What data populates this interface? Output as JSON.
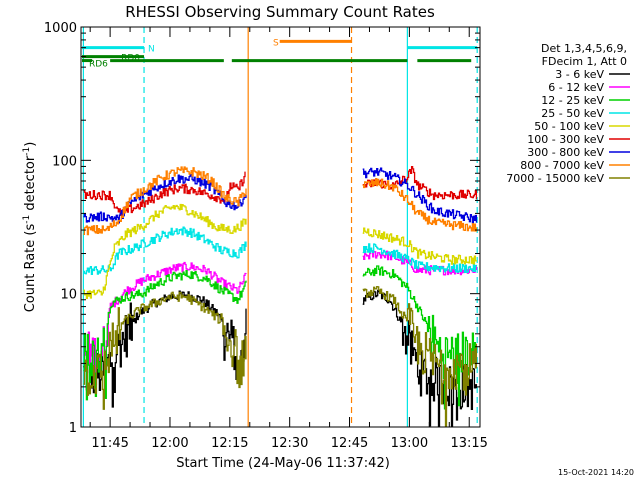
{
  "chart_data": {
    "type": "line",
    "title": "RHESSI Observing Summary Count Rates",
    "xlabel": "Start Time (24-May-06 11:37:42)",
    "ylabel_main": "Count Rate (s",
    "ylabel_sup1": "-1",
    "ylabel_mid": " detector",
    "ylabel_sup2": "-1",
    "ylabel_end": ")",
    "yscale": "log",
    "ylim": [
      1,
      1000
    ],
    "y_ticks": [
      {
        "value": 1,
        "label": "1"
      },
      {
        "value": 10,
        "label": "10"
      },
      {
        "value": 100,
        "label": "100"
      },
      {
        "value": 1000,
        "label": "1000"
      }
    ],
    "xlim_minutes": [
      697.7,
      797.7
    ],
    "x_ticks": [
      {
        "value": 705,
        "label": "11:45"
      },
      {
        "value": 720,
        "label": "12:00"
      },
      {
        "value": 735,
        "label": "12:15"
      },
      {
        "value": 750,
        "label": "12:30"
      },
      {
        "value": 765,
        "label": "12:45"
      },
      {
        "value": 780,
        "label": "13:00"
      },
      {
        "value": 795,
        "label": "13:15"
      }
    ],
    "legend": {
      "header_line1": "Det 1,3,4,5,6,9,",
      "header_line2": "FDecim 1, Att 0",
      "entries": [
        {
          "label": "3 - 6 keV",
          "color": "#000000"
        },
        {
          "label": "6 - 12 keV",
          "color": "#ff00ff"
        },
        {
          "label": "12 - 25 keV",
          "color": "#00d000"
        },
        {
          "label": "25 - 50 keV",
          "color": "#00e5e5"
        },
        {
          "label": "50 - 100 keV",
          "color": "#d8d800"
        },
        {
          "label": "100 - 300 keV",
          "color": "#e00000"
        },
        {
          "label": "300 - 800 keV",
          "color": "#0000dd"
        },
        {
          "label": "800 - 7000 keV",
          "color": "#ff8000"
        },
        {
          "label": "7000 - 15000 keV",
          "color": "#808000"
        }
      ]
    },
    "flags": [
      {
        "name": "S",
        "color": "#ff8000",
        "segments": [
          [
            747.5,
            765.5
          ]
        ],
        "level": 780
      },
      {
        "name": "N",
        "color": "#00e5e5",
        "segments": [
          [
            697.7,
            713.5
          ],
          [
            779.5,
            797.0
          ]
        ],
        "level": 700
      },
      {
        "name": "RD0",
        "color": "#008000",
        "segments": [
          [
            697.7,
            713.5
          ]
        ],
        "level": 600
      },
      {
        "name": "RD6",
        "color": "#008000",
        "segments": [
          [
            697.7,
            700.5
          ],
          [
            705,
            733.5
          ],
          [
            735.5,
            765.5
          ],
          [
            765.5,
            779.5
          ],
          [
            782,
            795.5
          ]
        ],
        "level": 560
      }
    ],
    "markers": [
      {
        "x": 698.3,
        "color": "#00e5e5",
        "style": "solid"
      },
      {
        "x": 713.5,
        "color": "#00e5e5",
        "style": "dashed"
      },
      {
        "x": 739.6,
        "color": "#ff8000",
        "style": "solid"
      },
      {
        "x": 765.5,
        "color": "#ff8000",
        "style": "dashed"
      },
      {
        "x": 779.5,
        "color": "#00e5e5",
        "style": "solid"
      },
      {
        "x": 797.0,
        "color": "#00e5e5",
        "style": "dashed"
      }
    ],
    "segments": [
      [
        698.3,
        739.2
      ],
      [
        768.3,
        797.0
      ]
    ],
    "series": [
      {
        "name": "3 - 6 keV",
        "color": "#000000",
        "points": [
          [
            698.3,
            2.5
          ],
          [
            703,
            2.5
          ],
          [
            706,
            3.5
          ],
          [
            709,
            5
          ],
          [
            712,
            7
          ],
          [
            716,
            8.5
          ],
          [
            720,
            9.5
          ],
          [
            724,
            9.8
          ],
          [
            728,
            9
          ],
          [
            732,
            7
          ],
          [
            736,
            4
          ],
          [
            737.5,
            2.6
          ],
          [
            738.5,
            4
          ],
          [
            739.2,
            6
          ],
          [
            768.3,
            9
          ],
          [
            772,
            10
          ],
          [
            775,
            9
          ],
          [
            778,
            6
          ],
          [
            780,
            4
          ],
          [
            783,
            2.5
          ],
          [
            790,
            2
          ],
          [
            797,
            2
          ]
        ]
      },
      {
        "name": "6 - 12 keV",
        "color": "#ff00ff",
        "points": [
          [
            698.3,
            3.5
          ],
          [
            703,
            3.5
          ],
          [
            705,
            8
          ],
          [
            709,
            10.5
          ],
          [
            713,
            12.5
          ],
          [
            717,
            14
          ],
          [
            721,
            15.5
          ],
          [
            725,
            16
          ],
          [
            729,
            15
          ],
          [
            733,
            12
          ],
          [
            737,
            10.5
          ],
          [
            739.2,
            14
          ],
          [
            768.3,
            19
          ],
          [
            772,
            20
          ],
          [
            776,
            19
          ],
          [
            779.5,
            17
          ],
          [
            782,
            15
          ],
          [
            790,
            15
          ],
          [
            797,
            15
          ]
        ]
      },
      {
        "name": "12 - 25 keV",
        "color": "#00d000",
        "points": [
          [
            698.3,
            3.5
          ],
          [
            703,
            3.5
          ],
          [
            705,
            8.5
          ],
          [
            709,
            9.5
          ],
          [
            713,
            10
          ],
          [
            717,
            12
          ],
          [
            721,
            13.5
          ],
          [
            725,
            14
          ],
          [
            729,
            13
          ],
          [
            733,
            10.5
          ],
          [
            737,
            9
          ],
          [
            739.2,
            12
          ],
          [
            768.3,
            14
          ],
          [
            772,
            15
          ],
          [
            776,
            14
          ],
          [
            779.5,
            11
          ],
          [
            782,
            8
          ],
          [
            788,
            3.5
          ],
          [
            797,
            3.5
          ]
        ]
      },
      {
        "name": "25 - 50 keV",
        "color": "#00e5e5",
        "points": [
          [
            698.3,
            15
          ],
          [
            705,
            15
          ],
          [
            707,
            20
          ],
          [
            711,
            22
          ],
          [
            715,
            25
          ],
          [
            719,
            28
          ],
          [
            722,
            30
          ],
          [
            725,
            29
          ],
          [
            729,
            25
          ],
          [
            733,
            21
          ],
          [
            737,
            20
          ],
          [
            739.2,
            24
          ],
          [
            768.3,
            22
          ],
          [
            772,
            22
          ],
          [
            776,
            20
          ],
          [
            779.5,
            18
          ],
          [
            782,
            16
          ],
          [
            790,
            15.5
          ],
          [
            797,
            15.5
          ]
        ]
      },
      {
        "name": "50 - 100 keV",
        "color": "#d8d800",
        "points": [
          [
            698.3,
            10
          ],
          [
            703,
            10
          ],
          [
            706,
            22
          ],
          [
            709,
            28
          ],
          [
            713,
            32
          ],
          [
            717,
            40
          ],
          [
            721,
            45
          ],
          [
            724,
            43
          ],
          [
            728,
            37
          ],
          [
            732,
            31
          ],
          [
            736,
            30
          ],
          [
            739.2,
            35
          ],
          [
            768.3,
            30
          ],
          [
            772,
            28
          ],
          [
            776,
            26
          ],
          [
            779.5,
            24
          ],
          [
            782,
            20
          ],
          [
            790,
            18
          ],
          [
            797,
            18
          ]
        ]
      },
      {
        "name": "100 - 300 keV",
        "color": "#e00000",
        "points": [
          [
            698.3,
            55
          ],
          [
            705,
            55
          ],
          [
            707,
            40
          ],
          [
            710,
            43
          ],
          [
            714,
            48
          ],
          [
            718,
            57
          ],
          [
            722,
            62
          ],
          [
            726,
            60
          ],
          [
            730,
            55
          ],
          [
            734,
            50
          ],
          [
            735,
            65
          ],
          [
            737,
            60
          ],
          [
            739,
            80
          ],
          [
            739.6,
            150
          ],
          [
            768.3,
            65
          ],
          [
            772,
            68
          ],
          [
            776,
            64
          ],
          [
            779.5,
            75
          ],
          [
            780.5,
            85
          ],
          [
            782,
            65
          ],
          [
            786,
            55
          ],
          [
            797,
            55
          ]
        ]
      },
      {
        "name": "300 - 800 keV",
        "color": "#0000dd",
        "points": [
          [
            698.3,
            37
          ],
          [
            704,
            38
          ],
          [
            707,
            36
          ],
          [
            710,
            48
          ],
          [
            714,
            57
          ],
          [
            718,
            66
          ],
          [
            722,
            73
          ],
          [
            726,
            72
          ],
          [
            730,
            64
          ],
          [
            734,
            48
          ],
          [
            737,
            45
          ],
          [
            739.2,
            58
          ],
          [
            768.3,
            80
          ],
          [
            772,
            82
          ],
          [
            776,
            75
          ],
          [
            779.5,
            65
          ],
          [
            782,
            55
          ],
          [
            786,
            42
          ],
          [
            797,
            36
          ]
        ]
      },
      {
        "name": "800 - 7000 keV",
        "color": "#ff8000",
        "points": [
          [
            698.3,
            30
          ],
          [
            704,
            30
          ],
          [
            707,
            35
          ],
          [
            710,
            52
          ],
          [
            714,
            62
          ],
          [
            718,
            75
          ],
          [
            722,
            83
          ],
          [
            726,
            82
          ],
          [
            730,
            72
          ],
          [
            734,
            52
          ],
          [
            737,
            48
          ],
          [
            739.2,
            62
          ],
          [
            768.3,
            65
          ],
          [
            772,
            68
          ],
          [
            776,
            63
          ],
          [
            779.5,
            50
          ],
          [
            782,
            40
          ],
          [
            786,
            34
          ],
          [
            797,
            31
          ]
        ]
      },
      {
        "name": "7000 - 15000 keV",
        "color": "#808000",
        "points": [
          [
            698.3,
            2.5
          ],
          [
            703,
            2.5
          ],
          [
            705,
            4
          ],
          [
            708,
            6
          ],
          [
            712,
            7.5
          ],
          [
            716,
            8.5
          ],
          [
            720,
            9.5
          ],
          [
            724,
            9.5
          ],
          [
            728,
            8
          ],
          [
            732,
            6.5
          ],
          [
            736,
            4
          ],
          [
            737.5,
            2.5
          ],
          [
            738.5,
            4
          ],
          [
            739.2,
            5
          ],
          [
            768.3,
            10
          ],
          [
            772,
            10.5
          ],
          [
            776,
            9
          ],
          [
            779.5,
            6
          ],
          [
            782,
            4
          ],
          [
            786,
            3
          ],
          [
            797,
            2.8
          ]
        ]
      }
    ]
  },
  "timestamp": "15-Oct-2021 14:20"
}
